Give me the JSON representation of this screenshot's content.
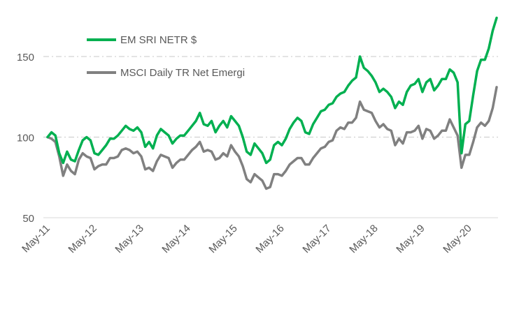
{
  "chart_data": {
    "type": "line",
    "title": "",
    "xlabel": "",
    "ylabel": "",
    "ylim": [
      50,
      180
    ],
    "yticks": [
      50,
      100,
      150
    ],
    "grid": "horizontal-dash-dot",
    "legend_position": "top-left",
    "x_tick_labels": [
      "May-11",
      "May-12",
      "May-13",
      "May-14",
      "May-15",
      "May-16",
      "May-17",
      "May-18",
      "May-19",
      "May-20"
    ],
    "x_tick_dates": [
      "2011-05",
      "2012-05",
      "2013-05",
      "2014-05",
      "2015-05",
      "2016-05",
      "2017-05",
      "2018-05",
      "2019-05",
      "2020-05"
    ],
    "series": [
      {
        "name": "EM SRI NETR $",
        "color": "#00b050",
        "points": [
          [
            "2011-05",
            100
          ],
          [
            "2011-06",
            103
          ],
          [
            "2011-07",
            101
          ],
          [
            "2011-08",
            90
          ],
          [
            "2011-09",
            84
          ],
          [
            "2011-10",
            91
          ],
          [
            "2011-11",
            86
          ],
          [
            "2011-12",
            85
          ],
          [
            "2012-01",
            92
          ],
          [
            "2012-02",
            98
          ],
          [
            "2012-03",
            100
          ],
          [
            "2012-04",
            98
          ],
          [
            "2012-05",
            90
          ],
          [
            "2012-06",
            89
          ],
          [
            "2012-07",
            92
          ],
          [
            "2012-08",
            95
          ],
          [
            "2012-09",
            99
          ],
          [
            "2012-10",
            99
          ],
          [
            "2012-11",
            101
          ],
          [
            "2012-12",
            104
          ],
          [
            "2013-01",
            107
          ],
          [
            "2013-02",
            105
          ],
          [
            "2013-03",
            104
          ],
          [
            "2013-04",
            106
          ],
          [
            "2013-05",
            103
          ],
          [
            "2013-06",
            94
          ],
          [
            "2013-07",
            97
          ],
          [
            "2013-08",
            93
          ],
          [
            "2013-09",
            101
          ],
          [
            "2013-10",
            105
          ],
          [
            "2013-11",
            103
          ],
          [
            "2013-12",
            101
          ],
          [
            "2014-01",
            96
          ],
          [
            "2014-02",
            99
          ],
          [
            "2014-03",
            101
          ],
          [
            "2014-04",
            101
          ],
          [
            "2014-05",
            104
          ],
          [
            "2014-06",
            107
          ],
          [
            "2014-07",
            110
          ],
          [
            "2014-08",
            115
          ],
          [
            "2014-09",
            108
          ],
          [
            "2014-10",
            107
          ],
          [
            "2014-11",
            110
          ],
          [
            "2014-12",
            103
          ],
          [
            "2015-01",
            107
          ],
          [
            "2015-02",
            110
          ],
          [
            "2015-03",
            106
          ],
          [
            "2015-04",
            113
          ],
          [
            "2015-05",
            110
          ],
          [
            "2015-06",
            107
          ],
          [
            "2015-07",
            100
          ],
          [
            "2015-08",
            91
          ],
          [
            "2015-09",
            89
          ],
          [
            "2015-10",
            96
          ],
          [
            "2015-11",
            93
          ],
          [
            "2015-12",
            90
          ],
          [
            "2016-01",
            84
          ],
          [
            "2016-02",
            86
          ],
          [
            "2016-03",
            95
          ],
          [
            "2016-04",
            97
          ],
          [
            "2016-05",
            95
          ],
          [
            "2016-06",
            99
          ],
          [
            "2016-07",
            105
          ],
          [
            "2016-08",
            109
          ],
          [
            "2016-09",
            112
          ],
          [
            "2016-10",
            110
          ],
          [
            "2016-11",
            103
          ],
          [
            "2016-12",
            102
          ],
          [
            "2017-01",
            108
          ],
          [
            "2017-02",
            112
          ],
          [
            "2017-03",
            116
          ],
          [
            "2017-04",
            117
          ],
          [
            "2017-05",
            120
          ],
          [
            "2017-06",
            121
          ],
          [
            "2017-07",
            125
          ],
          [
            "2017-08",
            127
          ],
          [
            "2017-09",
            128
          ],
          [
            "2017-10",
            132
          ],
          [
            "2017-11",
            135
          ],
          [
            "2017-12",
            137
          ],
          [
            "2018-01",
            150
          ],
          [
            "2018-02",
            143
          ],
          [
            "2018-03",
            141
          ],
          [
            "2018-04",
            138
          ],
          [
            "2018-05",
            134
          ],
          [
            "2018-06",
            128
          ],
          [
            "2018-07",
            130
          ],
          [
            "2018-08",
            128
          ],
          [
            "2018-09",
            125
          ],
          [
            "2018-10",
            118
          ],
          [
            "2018-11",
            122
          ],
          [
            "2018-12",
            120
          ],
          [
            "2019-01",
            128
          ],
          [
            "2019-02",
            132
          ],
          [
            "2019-03",
            133
          ],
          [
            "2019-04",
            136
          ],
          [
            "2019-05",
            128
          ],
          [
            "2019-06",
            134
          ],
          [
            "2019-07",
            136
          ],
          [
            "2019-08",
            129
          ],
          [
            "2019-09",
            132
          ],
          [
            "2019-10",
            136
          ],
          [
            "2019-11",
            136
          ],
          [
            "2019-12",
            142
          ],
          [
            "2020-01",
            140
          ],
          [
            "2020-02",
            134
          ],
          [
            "2020-03",
            90
          ],
          [
            "2020-04",
            108
          ],
          [
            "2020-05",
            110
          ],
          [
            "2020-06",
            126
          ],
          [
            "2020-07",
            141
          ],
          [
            "2020-08",
            148
          ],
          [
            "2020-09",
            148
          ],
          [
            "2020-10",
            155
          ],
          [
            "2020-11",
            166
          ],
          [
            "2020-12",
            174
          ]
        ]
      },
      {
        "name": "MSCI Daily TR Net Emergi",
        "color": "#808080",
        "points": [
          [
            "2011-05",
            100
          ],
          [
            "2011-06",
            99
          ],
          [
            "2011-07",
            97
          ],
          [
            "2011-08",
            88
          ],
          [
            "2011-09",
            76
          ],
          [
            "2011-10",
            83
          ],
          [
            "2011-11",
            79
          ],
          [
            "2011-12",
            77
          ],
          [
            "2012-01",
            86
          ],
          [
            "2012-02",
            90
          ],
          [
            "2012-03",
            88
          ],
          [
            "2012-04",
            87
          ],
          [
            "2012-05",
            80
          ],
          [
            "2012-06",
            82
          ],
          [
            "2012-07",
            83
          ],
          [
            "2012-08",
            83
          ],
          [
            "2012-09",
            87
          ],
          [
            "2012-10",
            87
          ],
          [
            "2012-11",
            88
          ],
          [
            "2012-12",
            92
          ],
          [
            "2013-01",
            93
          ],
          [
            "2013-02",
            92
          ],
          [
            "2013-03",
            90
          ],
          [
            "2013-04",
            91
          ],
          [
            "2013-05",
            88
          ],
          [
            "2013-06",
            80
          ],
          [
            "2013-07",
            81
          ],
          [
            "2013-08",
            79
          ],
          [
            "2013-09",
            85
          ],
          [
            "2013-10",
            89
          ],
          [
            "2013-11",
            88
          ],
          [
            "2013-12",
            87
          ],
          [
            "2014-01",
            81
          ],
          [
            "2014-02",
            84
          ],
          [
            "2014-03",
            86
          ],
          [
            "2014-04",
            86
          ],
          [
            "2014-05",
            89
          ],
          [
            "2014-06",
            92
          ],
          [
            "2014-07",
            94
          ],
          [
            "2014-08",
            97
          ],
          [
            "2014-09",
            91
          ],
          [
            "2014-10",
            92
          ],
          [
            "2014-11",
            91
          ],
          [
            "2014-12",
            86
          ],
          [
            "2015-01",
            87
          ],
          [
            "2015-02",
            90
          ],
          [
            "2015-03",
            88
          ],
          [
            "2015-04",
            95
          ],
          [
            "2015-05",
            91
          ],
          [
            "2015-06",
            88
          ],
          [
            "2015-07",
            82
          ],
          [
            "2015-08",
            74
          ],
          [
            "2015-09",
            72
          ],
          [
            "2015-10",
            77
          ],
          [
            "2015-11",
            75
          ],
          [
            "2015-12",
            73
          ],
          [
            "2016-01",
            68
          ],
          [
            "2016-02",
            69
          ],
          [
            "2016-03",
            77
          ],
          [
            "2016-04",
            77
          ],
          [
            "2016-05",
            76
          ],
          [
            "2016-06",
            79
          ],
          [
            "2016-07",
            83
          ],
          [
            "2016-08",
            85
          ],
          [
            "2016-09",
            87
          ],
          [
            "2016-10",
            87
          ],
          [
            "2016-11",
            83
          ],
          [
            "2016-12",
            83
          ],
          [
            "2017-01",
            87
          ],
          [
            "2017-02",
            90
          ],
          [
            "2017-03",
            93
          ],
          [
            "2017-04",
            94
          ],
          [
            "2017-05",
            97
          ],
          [
            "2017-06",
            98
          ],
          [
            "2017-07",
            104
          ],
          [
            "2017-08",
            106
          ],
          [
            "2017-09",
            105
          ],
          [
            "2017-10",
            109
          ],
          [
            "2017-11",
            109
          ],
          [
            "2017-12",
            112
          ],
          [
            "2018-01",
            122
          ],
          [
            "2018-02",
            117
          ],
          [
            "2018-03",
            116
          ],
          [
            "2018-04",
            115
          ],
          [
            "2018-05",
            110
          ],
          [
            "2018-06",
            106
          ],
          [
            "2018-07",
            108
          ],
          [
            "2018-08",
            105
          ],
          [
            "2018-09",
            104
          ],
          [
            "2018-10",
            95
          ],
          [
            "2018-11",
            99
          ],
          [
            "2018-12",
            96
          ],
          [
            "2019-01",
            103
          ],
          [
            "2019-02",
            103
          ],
          [
            "2019-03",
            104
          ],
          [
            "2019-04",
            107
          ],
          [
            "2019-05",
            99
          ],
          [
            "2019-06",
            105
          ],
          [
            "2019-07",
            104
          ],
          [
            "2019-08",
            99
          ],
          [
            "2019-09",
            101
          ],
          [
            "2019-10",
            104
          ],
          [
            "2019-11",
            104
          ],
          [
            "2019-12",
            111
          ],
          [
            "2020-01",
            106
          ],
          [
            "2020-02",
            101
          ],
          [
            "2020-03",
            81
          ],
          [
            "2020-04",
            89
          ],
          [
            "2020-05",
            89
          ],
          [
            "2020-06",
            97
          ],
          [
            "2020-07",
            106
          ],
          [
            "2020-08",
            109
          ],
          [
            "2020-09",
            107
          ],
          [
            "2020-10",
            110
          ],
          [
            "2020-11",
            118
          ],
          [
            "2020-12",
            131
          ]
        ]
      }
    ]
  }
}
